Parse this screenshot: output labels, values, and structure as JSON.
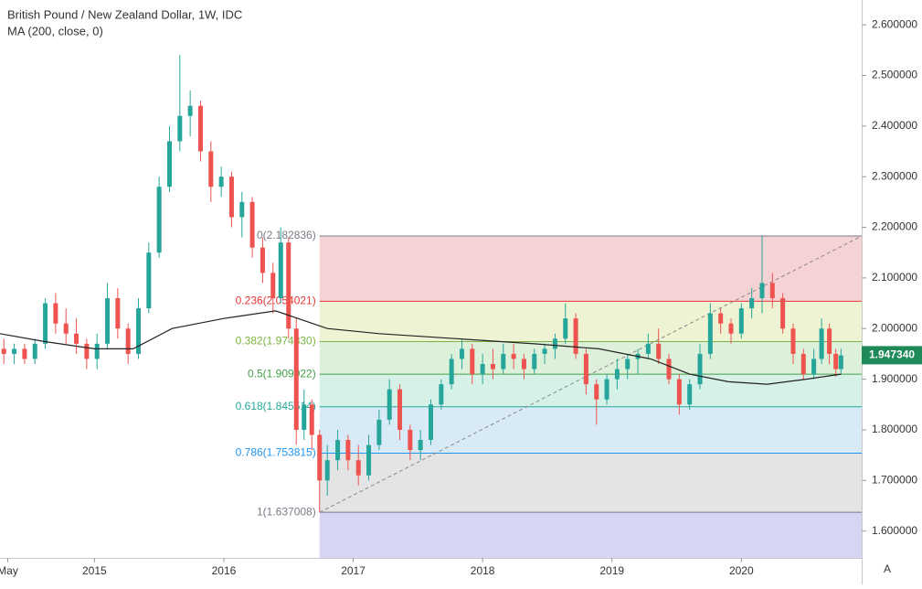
{
  "chart_data": {
    "type": "candlestick",
    "title": "British Pound / New Zealand Dollar, 1W, IDC",
    "indicator": "MA (200, close, 0)",
    "up_color": "#26a69a",
    "down_color": "#ef5350",
    "ma_color": "#222222",
    "xlim": [
      2014.27,
      2020.93
    ],
    "ylim": [
      1.547,
      2.649
    ],
    "yticks": [
      {
        "value": 1.6,
        "label": "1.600000"
      },
      {
        "value": 1.7,
        "label": "1.700000"
      },
      {
        "value": 1.8,
        "label": "1.800000"
      },
      {
        "value": 1.9,
        "label": "1.900000"
      },
      {
        "value": 2.0,
        "label": "2.000000"
      },
      {
        "value": 2.1,
        "label": "2.100000"
      },
      {
        "value": 2.2,
        "label": "2.200000"
      },
      {
        "value": 2.3,
        "label": "2.300000"
      },
      {
        "value": 2.4,
        "label": "2.400000"
      },
      {
        "value": 2.5,
        "label": "2.500000"
      },
      {
        "value": 2.6,
        "label": "2.600000"
      }
    ],
    "xticks": [
      {
        "value": 2014.33,
        "label": "May"
      },
      2015,
      2016,
      2017,
      2018,
      2019,
      2020
    ],
    "grid": false,
    "last_price": {
      "value": 1.94734,
      "label": "1.947340",
      "color": "#1e8a5a"
    },
    "candles": [
      {
        "t": 2014.3,
        "o": 1.96,
        "h": 1.98,
        "l": 1.93,
        "c": 1.95
      },
      {
        "t": 2014.38,
        "o": 1.95,
        "h": 1.97,
        "l": 1.93,
        "c": 1.96
      },
      {
        "t": 2014.46,
        "o": 1.96,
        "h": 1.97,
        "l": 1.93,
        "c": 1.94
      },
      {
        "t": 2014.54,
        "o": 1.94,
        "h": 1.98,
        "l": 1.93,
        "c": 1.97
      },
      {
        "t": 2014.62,
        "o": 1.97,
        "h": 2.06,
        "l": 1.96,
        "c": 2.05
      },
      {
        "t": 2014.7,
        "o": 2.05,
        "h": 2.07,
        "l": 1.99,
        "c": 2.01
      },
      {
        "t": 2014.78,
        "o": 2.01,
        "h": 2.04,
        "l": 1.97,
        "c": 1.99
      },
      {
        "t": 2014.86,
        "o": 1.99,
        "h": 2.02,
        "l": 1.95,
        "c": 1.97
      },
      {
        "t": 2014.94,
        "o": 1.97,
        "h": 1.98,
        "l": 1.92,
        "c": 1.94
      },
      {
        "t": 2015.02,
        "o": 1.94,
        "h": 1.99,
        "l": 1.92,
        "c": 1.97
      },
      {
        "t": 2015.1,
        "o": 1.97,
        "h": 2.09,
        "l": 1.96,
        "c": 2.06
      },
      {
        "t": 2015.18,
        "o": 2.06,
        "h": 2.08,
        "l": 1.98,
        "c": 2.0
      },
      {
        "t": 2015.26,
        "o": 2.0,
        "h": 2.01,
        "l": 1.93,
        "c": 1.95
      },
      {
        "t": 2015.34,
        "o": 1.95,
        "h": 2.06,
        "l": 1.94,
        "c": 2.04
      },
      {
        "t": 2015.42,
        "o": 2.04,
        "h": 2.17,
        "l": 2.03,
        "c": 2.15
      },
      {
        "t": 2015.5,
        "o": 2.15,
        "h": 2.3,
        "l": 2.14,
        "c": 2.28
      },
      {
        "t": 2015.58,
        "o": 2.28,
        "h": 2.4,
        "l": 2.27,
        "c": 2.37
      },
      {
        "t": 2015.66,
        "o": 2.37,
        "h": 2.54,
        "l": 2.35,
        "c": 2.42
      },
      {
        "t": 2015.74,
        "o": 2.42,
        "h": 2.47,
        "l": 2.38,
        "c": 2.44
      },
      {
        "t": 2015.82,
        "o": 2.44,
        "h": 2.45,
        "l": 2.33,
        "c": 2.35
      },
      {
        "t": 2015.9,
        "o": 2.35,
        "h": 2.37,
        "l": 2.25,
        "c": 2.28
      },
      {
        "t": 2015.98,
        "o": 2.28,
        "h": 2.32,
        "l": 2.26,
        "c": 2.3
      },
      {
        "t": 2016.06,
        "o": 2.3,
        "h": 2.31,
        "l": 2.2,
        "c": 2.22
      },
      {
        "t": 2016.14,
        "o": 2.22,
        "h": 2.27,
        "l": 2.18,
        "c": 2.25
      },
      {
        "t": 2016.22,
        "o": 2.25,
        "h": 2.26,
        "l": 2.14,
        "c": 2.16
      },
      {
        "t": 2016.3,
        "o": 2.16,
        "h": 2.18,
        "l": 2.09,
        "c": 2.11
      },
      {
        "t": 2016.38,
        "o": 2.11,
        "h": 2.13,
        "l": 2.03,
        "c": 2.06
      },
      {
        "t": 2016.44,
        "o": 2.06,
        "h": 2.2,
        "l": 2.05,
        "c": 2.17
      },
      {
        "t": 2016.5,
        "o": 2.17,
        "h": 2.18,
        "l": 1.98,
        "c": 2.0
      },
      {
        "t": 2016.56,
        "o": 2.0,
        "h": 2.02,
        "l": 1.77,
        "c": 1.8
      },
      {
        "t": 2016.62,
        "o": 1.8,
        "h": 1.88,
        "l": 1.78,
        "c": 1.85
      },
      {
        "t": 2016.68,
        "o": 1.85,
        "h": 1.86,
        "l": 1.76,
        "c": 1.79
      },
      {
        "t": 2016.74,
        "o": 1.79,
        "h": 1.8,
        "l": 1.637,
        "c": 1.7
      },
      {
        "t": 2016.8,
        "o": 1.7,
        "h": 1.77,
        "l": 1.67,
        "c": 1.74
      },
      {
        "t": 2016.88,
        "o": 1.74,
        "h": 1.8,
        "l": 1.72,
        "c": 1.78
      },
      {
        "t": 2016.96,
        "o": 1.78,
        "h": 1.79,
        "l": 1.72,
        "c": 1.74
      },
      {
        "t": 2017.04,
        "o": 1.74,
        "h": 1.77,
        "l": 1.69,
        "c": 1.71
      },
      {
        "t": 2017.12,
        "o": 1.71,
        "h": 1.79,
        "l": 1.7,
        "c": 1.77
      },
      {
        "t": 2017.2,
        "o": 1.77,
        "h": 1.84,
        "l": 1.76,
        "c": 1.82
      },
      {
        "t": 2017.28,
        "o": 1.82,
        "h": 1.9,
        "l": 1.81,
        "c": 1.88
      },
      {
        "t": 2017.36,
        "o": 1.88,
        "h": 1.89,
        "l": 1.78,
        "c": 1.8
      },
      {
        "t": 2017.44,
        "o": 1.8,
        "h": 1.81,
        "l": 1.74,
        "c": 1.76
      },
      {
        "t": 2017.52,
        "o": 1.76,
        "h": 1.8,
        "l": 1.74,
        "c": 1.78
      },
      {
        "t": 2017.6,
        "o": 1.78,
        "h": 1.86,
        "l": 1.77,
        "c": 1.85
      },
      {
        "t": 2017.68,
        "o": 1.85,
        "h": 1.9,
        "l": 1.84,
        "c": 1.89
      },
      {
        "t": 2017.76,
        "o": 1.89,
        "h": 1.95,
        "l": 1.88,
        "c": 1.94
      },
      {
        "t": 2017.84,
        "o": 1.94,
        "h": 1.98,
        "l": 1.92,
        "c": 1.96
      },
      {
        "t": 2017.92,
        "o": 1.96,
        "h": 1.97,
        "l": 1.89,
        "c": 1.91
      },
      {
        "t": 2018.0,
        "o": 1.91,
        "h": 1.95,
        "l": 1.89,
        "c": 1.93
      },
      {
        "t": 2018.08,
        "o": 1.93,
        "h": 1.96,
        "l": 1.9,
        "c": 1.92
      },
      {
        "t": 2018.16,
        "o": 1.92,
        "h": 1.97,
        "l": 1.91,
        "c": 1.95
      },
      {
        "t": 2018.24,
        "o": 1.95,
        "h": 1.97,
        "l": 1.92,
        "c": 1.94
      },
      {
        "t": 2018.32,
        "o": 1.94,
        "h": 1.95,
        "l": 1.9,
        "c": 1.92
      },
      {
        "t": 2018.4,
        "o": 1.92,
        "h": 1.96,
        "l": 1.91,
        "c": 1.95
      },
      {
        "t": 2018.48,
        "o": 1.95,
        "h": 1.97,
        "l": 1.93,
        "c": 1.96
      },
      {
        "t": 2018.56,
        "o": 1.96,
        "h": 1.99,
        "l": 1.94,
        "c": 1.98
      },
      {
        "t": 2018.64,
        "o": 1.98,
        "h": 2.05,
        "l": 1.97,
        "c": 2.02
      },
      {
        "t": 2018.72,
        "o": 2.02,
        "h": 2.03,
        "l": 1.94,
        "c": 1.95
      },
      {
        "t": 2018.8,
        "o": 1.95,
        "h": 1.96,
        "l": 1.87,
        "c": 1.89
      },
      {
        "t": 2018.88,
        "o": 1.89,
        "h": 1.9,
        "l": 1.81,
        "c": 1.86
      },
      {
        "t": 2018.96,
        "o": 1.86,
        "h": 1.91,
        "l": 1.85,
        "c": 1.9
      },
      {
        "t": 2019.04,
        "o": 1.9,
        "h": 1.94,
        "l": 1.88,
        "c": 1.92
      },
      {
        "t": 2019.12,
        "o": 1.92,
        "h": 1.95,
        "l": 1.9,
        "c": 1.94
      },
      {
        "t": 2019.2,
        "o": 1.94,
        "h": 1.96,
        "l": 1.91,
        "c": 1.95
      },
      {
        "t": 2019.28,
        "o": 1.95,
        "h": 1.99,
        "l": 1.94,
        "c": 1.97
      },
      {
        "t": 2019.36,
        "o": 1.97,
        "h": 2.0,
        "l": 1.93,
        "c": 1.94
      },
      {
        "t": 2019.44,
        "o": 1.94,
        "h": 1.95,
        "l": 1.89,
        "c": 1.9
      },
      {
        "t": 2019.52,
        "o": 1.9,
        "h": 1.91,
        "l": 1.83,
        "c": 1.85
      },
      {
        "t": 2019.6,
        "o": 1.85,
        "h": 1.9,
        "l": 1.84,
        "c": 1.89
      },
      {
        "t": 2019.68,
        "o": 1.89,
        "h": 1.97,
        "l": 1.88,
        "c": 1.95
      },
      {
        "t": 2019.76,
        "o": 1.95,
        "h": 2.05,
        "l": 1.94,
        "c": 2.03
      },
      {
        "t": 2019.84,
        "o": 2.03,
        "h": 2.04,
        "l": 1.99,
        "c": 2.01
      },
      {
        "t": 2019.92,
        "o": 2.01,
        "h": 2.02,
        "l": 1.97,
        "c": 1.99
      },
      {
        "t": 2020.0,
        "o": 1.99,
        "h": 2.05,
        "l": 1.98,
        "c": 2.04
      },
      {
        "t": 2020.08,
        "o": 2.04,
        "h": 2.08,
        "l": 2.02,
        "c": 2.06
      },
      {
        "t": 2020.16,
        "o": 2.06,
        "h": 2.183,
        "l": 2.03,
        "c": 2.09
      },
      {
        "t": 2020.24,
        "o": 2.09,
        "h": 2.11,
        "l": 2.04,
        "c": 2.06
      },
      {
        "t": 2020.32,
        "o": 2.06,
        "h": 2.07,
        "l": 1.99,
        "c": 2.0
      },
      {
        "t": 2020.4,
        "o": 2.0,
        "h": 2.01,
        "l": 1.93,
        "c": 1.95
      },
      {
        "t": 2020.48,
        "o": 1.95,
        "h": 1.96,
        "l": 1.9,
        "c": 1.91
      },
      {
        "t": 2020.56,
        "o": 1.91,
        "h": 1.96,
        "l": 1.9,
        "c": 1.94
      },
      {
        "t": 2020.62,
        "o": 1.94,
        "h": 2.02,
        "l": 1.93,
        "c": 2.0
      },
      {
        "t": 2020.68,
        "o": 2.0,
        "h": 2.01,
        "l": 1.93,
        "c": 1.95
      },
      {
        "t": 2020.73,
        "o": 1.95,
        "h": 1.96,
        "l": 1.905,
        "c": 1.92
      },
      {
        "t": 2020.77,
        "o": 1.92,
        "h": 1.96,
        "l": 1.91,
        "c": 1.947
      }
    ],
    "ma": {
      "x": [
        2014.27,
        2014.6,
        2015.0,
        2015.3,
        2015.6,
        2016.0,
        2016.4,
        2016.8,
        2017.2,
        2017.8,
        2018.4,
        2018.9,
        2019.3,
        2019.6,
        2019.9,
        2020.2,
        2020.5,
        2020.77
      ],
      "values": [
        1.99,
        1.975,
        1.96,
        1.96,
        2.0,
        2.02,
        2.035,
        2.0,
        1.99,
        1.98,
        1.97,
        1.96,
        1.94,
        1.91,
        1.895,
        1.89,
        1.9,
        1.91
      ]
    },
    "fib_start": 2016.74,
    "fib_levels": [
      {
        "label": "0(2.182836)",
        "value": 2.182836,
        "color": "#787b86",
        "fill": "#f5d2d3"
      },
      {
        "label": "0.236(2.054021)",
        "value": 2.054021,
        "color": "#e53935",
        "fill": "#eef4d3"
      },
      {
        "label": "0.382(1.974330)",
        "value": 1.97433,
        "color": "#7cb342",
        "fill": "#ddf1da"
      },
      {
        "label": "0.5(1.909922)",
        "value": 1.909922,
        "color": "#43a047",
        "fill": "#d6f1e8"
      },
      {
        "label": "0.618(1.845514)",
        "value": 1.845514,
        "color": "#26a69a",
        "fill": "#d7eaf5"
      },
      {
        "label": "0.786(1.753815)",
        "value": 1.753815,
        "color": "#2196f3",
        "fill": "#e4e4e4"
      },
      {
        "label": "1(1.637008)",
        "value": 1.637008,
        "color": "#787b86",
        "fill": "#d6d6f4"
      }
    ],
    "button": "A"
  }
}
